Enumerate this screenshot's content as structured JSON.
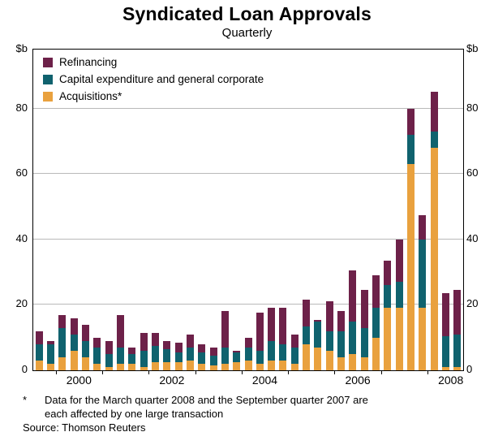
{
  "title": "Syndicated Loan Approvals",
  "subtitle": "Quarterly",
  "y_axis": {
    "unit_label": "$b",
    "ticks": [
      0,
      20,
      40,
      60,
      80
    ],
    "max": 98
  },
  "x_axis": {
    "year_labels": [
      "2000",
      "2002",
      "2004",
      "2006",
      "2008"
    ]
  },
  "legend": [
    {
      "label": "Refinancing",
      "color": "#6d2149"
    },
    {
      "label": "Capital expenditure and general corporate",
      "color": "#10626e"
    },
    {
      "label": "Acquisitions*",
      "color": "#e9a13e"
    }
  ],
  "footnote": {
    "marker": "*",
    "line1": "Data for the March quarter 2008 and the September quarter 2007 are",
    "line2": "each affected by one large transaction"
  },
  "source": "Source: Thomson Reuters",
  "chart_data": {
    "type": "bar",
    "stacked": true,
    "title": "Syndicated Loan Approvals",
    "subtitle": "Quarterly",
    "ylabel": "$b",
    "ylim": [
      0,
      98
    ],
    "grid": "horizontal",
    "legend_position": "top-left-inside",
    "categories": [
      "1999Q3",
      "1999Q4",
      "2000Q1",
      "2000Q2",
      "2000Q3",
      "2000Q4",
      "2001Q1",
      "2001Q2",
      "2001Q3",
      "2001Q4",
      "2002Q1",
      "2002Q2",
      "2002Q3",
      "2002Q4",
      "2003Q1",
      "2003Q2",
      "2003Q3",
      "2003Q4",
      "2004Q1",
      "2004Q2",
      "2004Q3",
      "2004Q4",
      "2005Q1",
      "2005Q2",
      "2005Q3",
      "2005Q4",
      "2006Q1",
      "2006Q2",
      "2006Q3",
      "2006Q4",
      "2007Q1",
      "2007Q2",
      "2007Q3",
      "2007Q4",
      "2008Q1",
      "2008Q2",
      "2008Q3"
    ],
    "series": [
      {
        "name": "Acquisitions*",
        "color": "#e9a13e",
        "values": [
          3,
          2,
          4,
          6,
          4,
          2,
          1,
          2,
          2,
          1,
          2.5,
          2.5,
          2.5,
          3,
          2,
          1.5,
          2,
          2.5,
          3,
          2,
          3,
          3,
          2,
          8,
          7,
          6,
          4,
          5,
          4,
          10,
          19,
          19,
          63,
          19,
          68,
          1,
          1
        ]
      },
      {
        "name": "Capital expenditure and general corporate",
        "color": "#10626e",
        "values": [
          5,
          6,
          9,
          5,
          5,
          5,
          4,
          5,
          3,
          5,
          5,
          4,
          3,
          4,
          3.5,
          3,
          5,
          3,
          4,
          4,
          6,
          5,
          5,
          5.5,
          8,
          6,
          8,
          10,
          9,
          9,
          7,
          8,
          9,
          21,
          5,
          9.5,
          10
        ]
      },
      {
        "name": "Refinancing",
        "color": "#6d2149",
        "values": [
          4,
          1,
          4,
          5,
          5,
          3,
          4,
          10,
          2,
          5.5,
          4,
          2.5,
          3,
          4,
          2.5,
          2.5,
          11,
          0.5,
          3,
          11.5,
          10,
          11,
          4,
          8,
          0.5,
          9,
          6,
          15.5,
          11.5,
          10,
          7.5,
          13,
          8,
          7.5,
          12,
          13,
          13.5
        ]
      }
    ]
  }
}
